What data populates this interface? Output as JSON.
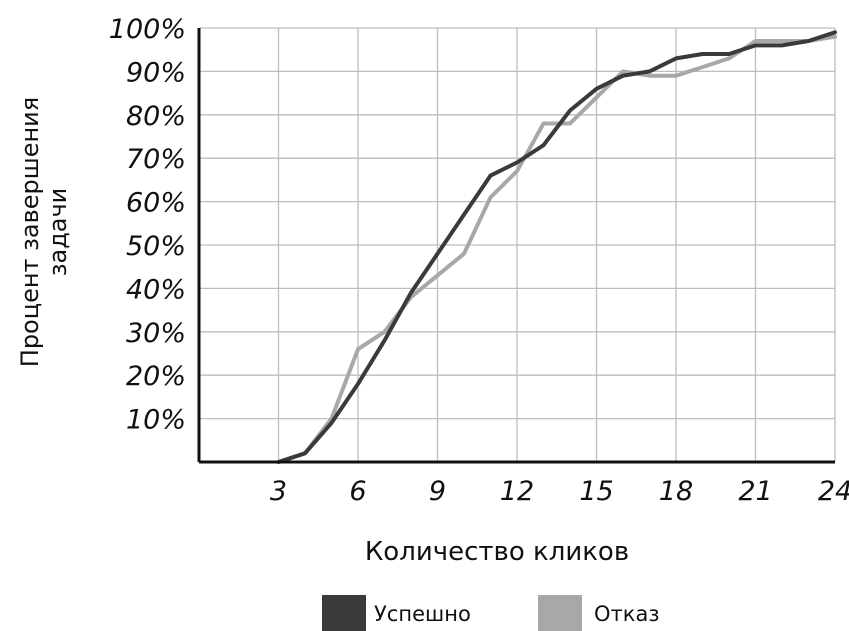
{
  "chart_data": {
    "type": "line",
    "title": "",
    "xlabel": "Количество кликов",
    "ylabel_lines": [
      "Процент завершения",
      "задачи"
    ],
    "x_ticks": [
      "3",
      "6",
      "9",
      "12",
      "15",
      "18",
      "21",
      "24"
    ],
    "x_tick_values": [
      3,
      6,
      9,
      12,
      15,
      18,
      21,
      24
    ],
    "y_ticks": [
      "10%",
      "20%",
      "30%",
      "40%",
      "50%",
      "60%",
      "70%",
      "80%",
      "90%",
      "100%"
    ],
    "y_tick_values": [
      10,
      20,
      30,
      40,
      50,
      60,
      70,
      80,
      90,
      100
    ],
    "xlim": [
      0,
      24
    ],
    "ylim": [
      0,
      100
    ],
    "grid": true,
    "legend_position": "bottom",
    "series": [
      {
        "name": "Успешно",
        "color": "#3a3a3a",
        "x": [
          3,
          4,
          5,
          6,
          7,
          8,
          9,
          10,
          11,
          12,
          13,
          14,
          15,
          16,
          17,
          18,
          19,
          20,
          21,
          22,
          23,
          24
        ],
        "y": [
          0,
          2,
          9,
          18,
          28,
          39,
          48,
          57,
          66,
          69,
          73,
          81,
          86,
          89,
          90,
          93,
          94,
          94,
          96,
          96,
          97,
          99
        ]
      },
      {
        "name": "Отказ",
        "color": "#a8a8a8",
        "x": [
          3,
          4,
          5,
          6,
          7,
          8,
          9,
          10,
          11,
          12,
          13,
          14,
          15,
          16,
          17,
          18,
          19,
          20,
          21,
          22,
          23,
          24
        ],
        "y": [
          0,
          2,
          10,
          26,
          30,
          38,
          43,
          48,
          61,
          67,
          78,
          78,
          84,
          90,
          89,
          89,
          91,
          93,
          97,
          97,
          97,
          98
        ]
      }
    ]
  }
}
